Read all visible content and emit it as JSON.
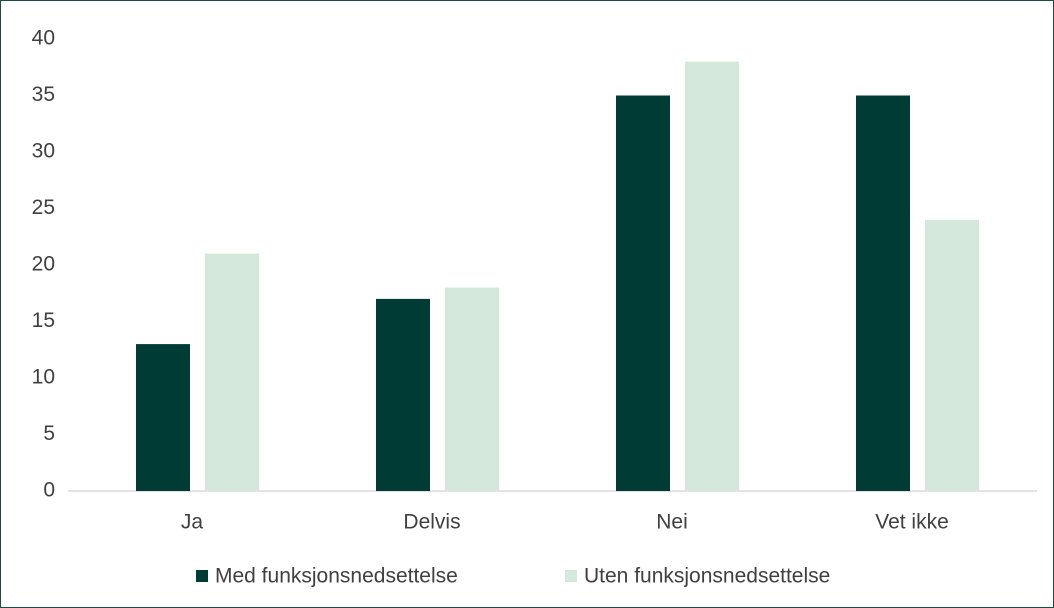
{
  "chart_data": {
    "type": "bar",
    "categories": [
      "Ja",
      "Delvis",
      "Nei",
      "Vet ikke"
    ],
    "series": [
      {
        "name": "Med funksjonsnedsettelse",
        "color": "#003b36",
        "values": [
          13,
          17,
          35,
          35
        ]
      },
      {
        "name": "Uten funksjonsnedsettelse",
        "color": "#d5e8dc",
        "values": [
          21,
          18,
          38,
          24
        ]
      }
    ],
    "ylim": [
      0,
      40
    ],
    "yticks": [
      0,
      5,
      10,
      15,
      20,
      25,
      30,
      35,
      40
    ],
    "grid": false
  }
}
